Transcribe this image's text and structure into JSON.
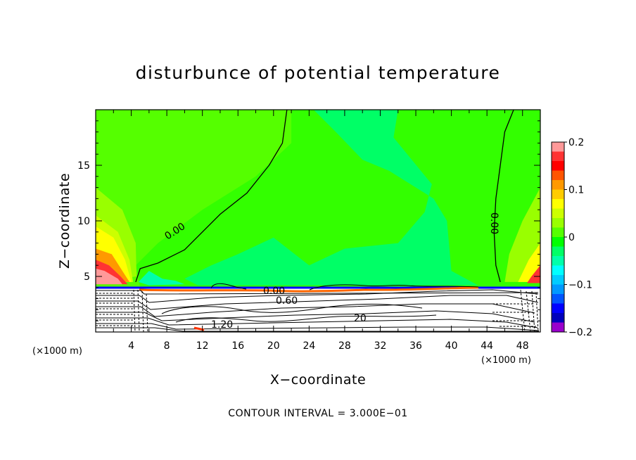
{
  "chart_data": {
    "type": "heatmap",
    "title": "disturbunce of potential temperature",
    "xlabel": "X−coordinate",
    "ylabel": "Z−coordinate",
    "x_unit": "(×1000 m)",
    "z_unit": "(×1000 m)",
    "xlim": [
      0,
      50
    ],
    "ylim": [
      0,
      20
    ],
    "x_ticks": [
      4,
      8,
      12,
      16,
      20,
      24,
      28,
      32,
      36,
      40,
      44,
      48
    ],
    "x_tick_labels": [
      "4",
      "8",
      "12",
      "16",
      "20",
      "24",
      "28",
      "32",
      "36",
      "40",
      "44",
      "48"
    ],
    "y_ticks": [
      5,
      10,
      15
    ],
    "y_tick_labels": [
      "5",
      "10",
      "15"
    ],
    "colorbar": {
      "range": [
        -0.2,
        0.2
      ],
      "ticks": [
        0.2,
        0.1,
        0,
        -0.1,
        -0.2
      ],
      "tick_labels": [
        "0.2",
        "0.1",
        "0",
        "−0.1",
        "−0.2"
      ],
      "colors": [
        "#ff9999",
        "#ff3333",
        "#ff0000",
        "#ff5500",
        "#ff9900",
        "#ffcc00",
        "#ffff00",
        "#ccff00",
        "#99ff00",
        "#55ff00",
        "#00ff00",
        "#00ff66",
        "#00ffaa",
        "#00ffff",
        "#00ccff",
        "#0099ff",
        "#0055ff",
        "#0000ff",
        "#0000bb",
        "#9900cc"
      ]
    },
    "contour_labels": [
      "0.00",
      "0.00",
      "0.00",
      "0.60",
      "1.20",
      "20"
    ],
    "footer": "CONTOUR INTERVAL = 3.000E−01",
    "bands": [
      {
        "level": 0.06,
        "color": "#55ff00",
        "points": [
          [
            0,
            20
          ],
          [
            22,
            20
          ],
          [
            22,
            17
          ],
          [
            18,
            14
          ],
          [
            12,
            11
          ],
          [
            7,
            8
          ],
          [
            4.5,
            6
          ],
          [
            5,
            4
          ],
          [
            0,
            4
          ]
        ]
      },
      {
        "level": 0.0,
        "color": "#00ff66",
        "points": [
          [
            24.5,
            20
          ],
          [
            34,
            20
          ],
          [
            33.5,
            17.5
          ],
          [
            37.8,
            13.3
          ],
          [
            37,
            10.8
          ],
          [
            34,
            8
          ],
          [
            28,
            7.5
          ],
          [
            24,
            6
          ],
          [
            20,
            8.5
          ],
          [
            16,
            7
          ],
          [
            13,
            6
          ],
          [
            10,
            4.8
          ],
          [
            11.5,
            4.2
          ],
          [
            43,
            4.2
          ],
          [
            40,
            5.5
          ],
          [
            39.5,
            10
          ],
          [
            38,
            12
          ],
          [
            33,
            14.5
          ],
          [
            30,
            15.5
          ],
          [
            27,
            18
          ]
        ]
      },
      {
        "level": -0.03,
        "color": "#00ffaa",
        "points": [
          [
            6,
            5.5
          ],
          [
            7.5,
            4.8
          ],
          [
            9,
            4.6
          ],
          [
            10,
            4.3
          ],
          [
            6,
            4.2
          ],
          [
            4.8,
            4.5
          ]
        ]
      },
      {
        "level": 0.09,
        "color": "#99ff00",
        "points": [
          [
            0,
            13
          ],
          [
            3,
            11
          ],
          [
            4.5,
            8
          ],
          [
            4.6,
            5
          ],
          [
            0,
            4.5
          ]
        ]
      },
      {
        "level": 0.12,
        "color": "#ccff00",
        "points": [
          [
            0,
            10.5
          ],
          [
            2.5,
            9
          ],
          [
            3.8,
            6.5
          ],
          [
            4.2,
            4.5
          ],
          [
            0,
            4.5
          ]
        ]
      },
      {
        "level": 0.15,
        "color": "#ffff00",
        "points": [
          [
            0,
            9.5
          ],
          [
            2,
            8.5
          ],
          [
            3.3,
            6.5
          ],
          [
            4,
            4.5
          ],
          [
            0,
            4.5
          ]
        ]
      },
      {
        "level": 0.18,
        "color": "#ff9900",
        "points": [
          [
            0,
            7.5
          ],
          [
            1.8,
            7
          ],
          [
            3,
            5.5
          ],
          [
            3.8,
            4.5
          ],
          [
            0,
            4.5
          ]
        ]
      },
      {
        "level": 0.21,
        "color": "#ff3333",
        "points": [
          [
            0,
            6.5
          ],
          [
            1.5,
            6
          ],
          [
            2.8,
            5
          ],
          [
            3.6,
            4.3
          ],
          [
            0,
            4.3
          ]
        ]
      },
      {
        "level": 0.24,
        "color": "#ff9999",
        "points": [
          [
            0,
            5.7
          ],
          [
            1,
            5.5
          ],
          [
            2.5,
            4.8
          ],
          [
            3,
            4.3
          ],
          [
            0,
            4.3
          ]
        ]
      },
      {
        "level": 0.09,
        "color": "#99ff00",
        "points": [
          [
            50,
            13
          ],
          [
            48,
            10
          ],
          [
            46.5,
            7
          ],
          [
            46,
            4.5
          ],
          [
            50,
            4.5
          ]
        ]
      },
      {
        "level": 0.15,
        "color": "#ffff00",
        "points": [
          [
            50,
            8
          ],
          [
            48.7,
            6.5
          ],
          [
            47.5,
            4.5
          ],
          [
            50,
            4.5
          ]
        ]
      },
      {
        "level": 0.21,
        "color": "#ff3333",
        "points": [
          [
            50,
            6
          ],
          [
            49,
            5
          ],
          [
            48.5,
            4.4
          ],
          [
            50,
            4.4
          ]
        ]
      }
    ],
    "contour_lines": [
      {
        "value": 0.0,
        "points": [
          [
            4.5,
            4.5
          ],
          [
            5,
            5.7
          ],
          [
            7,
            6.2
          ],
          [
            10,
            7.4
          ],
          [
            14,
            10.6
          ],
          [
            17,
            12.5
          ],
          [
            19.5,
            15
          ],
          [
            21,
            17
          ],
          [
            21.5,
            20
          ]
        ]
      },
      {
        "value": 0.0,
        "points": [
          [
            47,
            20
          ],
          [
            46,
            18
          ],
          [
            45.5,
            15
          ],
          [
            45,
            12
          ],
          [
            44.8,
            9
          ],
          [
            45,
            6
          ],
          [
            45.5,
            4.5
          ]
        ]
      }
    ]
  }
}
